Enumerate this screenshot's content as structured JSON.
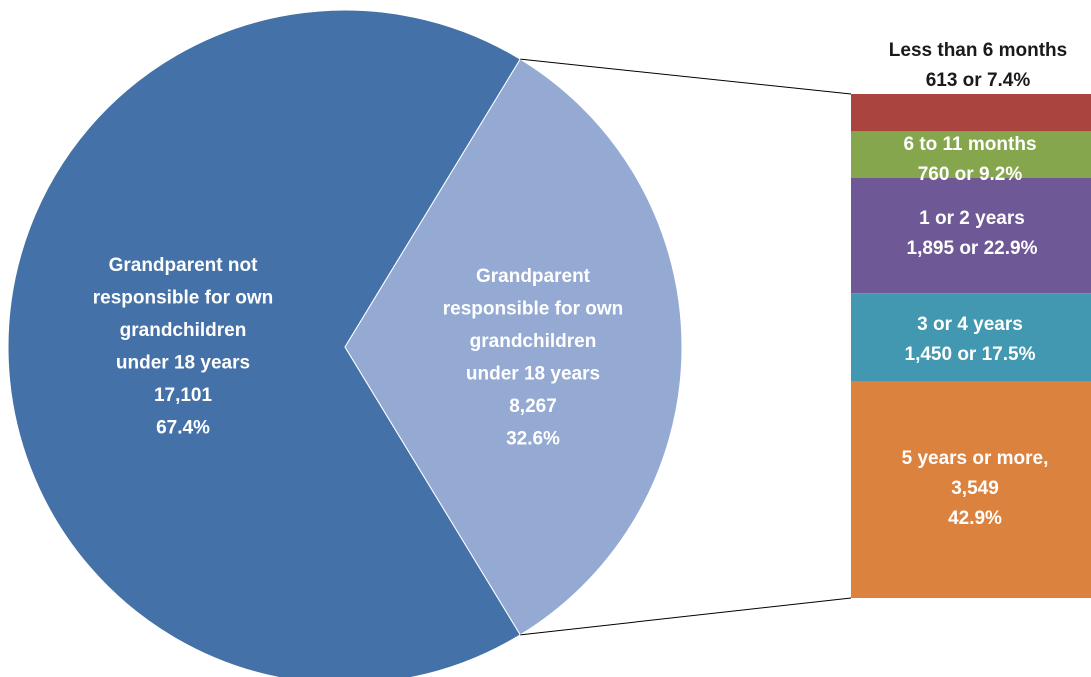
{
  "chart_data": {
    "type": "pie",
    "title": "",
    "colors": {
      "not_responsible": "#4472a8",
      "responsible": "#94aad2",
      "connector": "#000000"
    },
    "slices": [
      {
        "label_lines": [
          "Grandparent not",
          "responsible for own",
          "grandchildren",
          "under 18 years",
          "17,101",
          "67.4%"
        ],
        "value": 17101,
        "percent": 67.4
      },
      {
        "label_lines": [
          "Grandparent",
          "responsible for own",
          "grandchildren",
          "under 18 years",
          "8,267",
          "32.6%"
        ],
        "value": 8267,
        "percent": 32.6
      }
    ],
    "breakdown": {
      "type": "stacked-bar",
      "segments": [
        {
          "label_lines": [
            "Less than 6 months",
            "613 or 7.4%"
          ],
          "value": 613,
          "percent": 7.4,
          "color": "#a9443f",
          "label_color": "#1a1a1a"
        },
        {
          "label_lines": [
            "6 to 11 months",
            "760 or 9.2%"
          ],
          "value": 760,
          "percent": 9.2,
          "color": "#86a64d",
          "label_color": "#ffffff"
        },
        {
          "label_lines": [
            "1 or 2 years",
            "1,895 or 22.9%"
          ],
          "value": 1895,
          "percent": 22.9,
          "color": "#6e5895",
          "label_color": "#ffffff"
        },
        {
          "label_lines": [
            "3 or 4 years",
            "1,450 or  17.5%"
          ],
          "value": 1450,
          "percent": 17.5,
          "color": "#4198b0",
          "label_color": "#ffffff"
        },
        {
          "label_lines": [
            "5 years or more,",
            "3,549",
            "42.9%"
          ],
          "value": 3549,
          "percent": 42.9,
          "color": "#dc823f",
          "label_color": "#ffffff"
        }
      ]
    }
  }
}
